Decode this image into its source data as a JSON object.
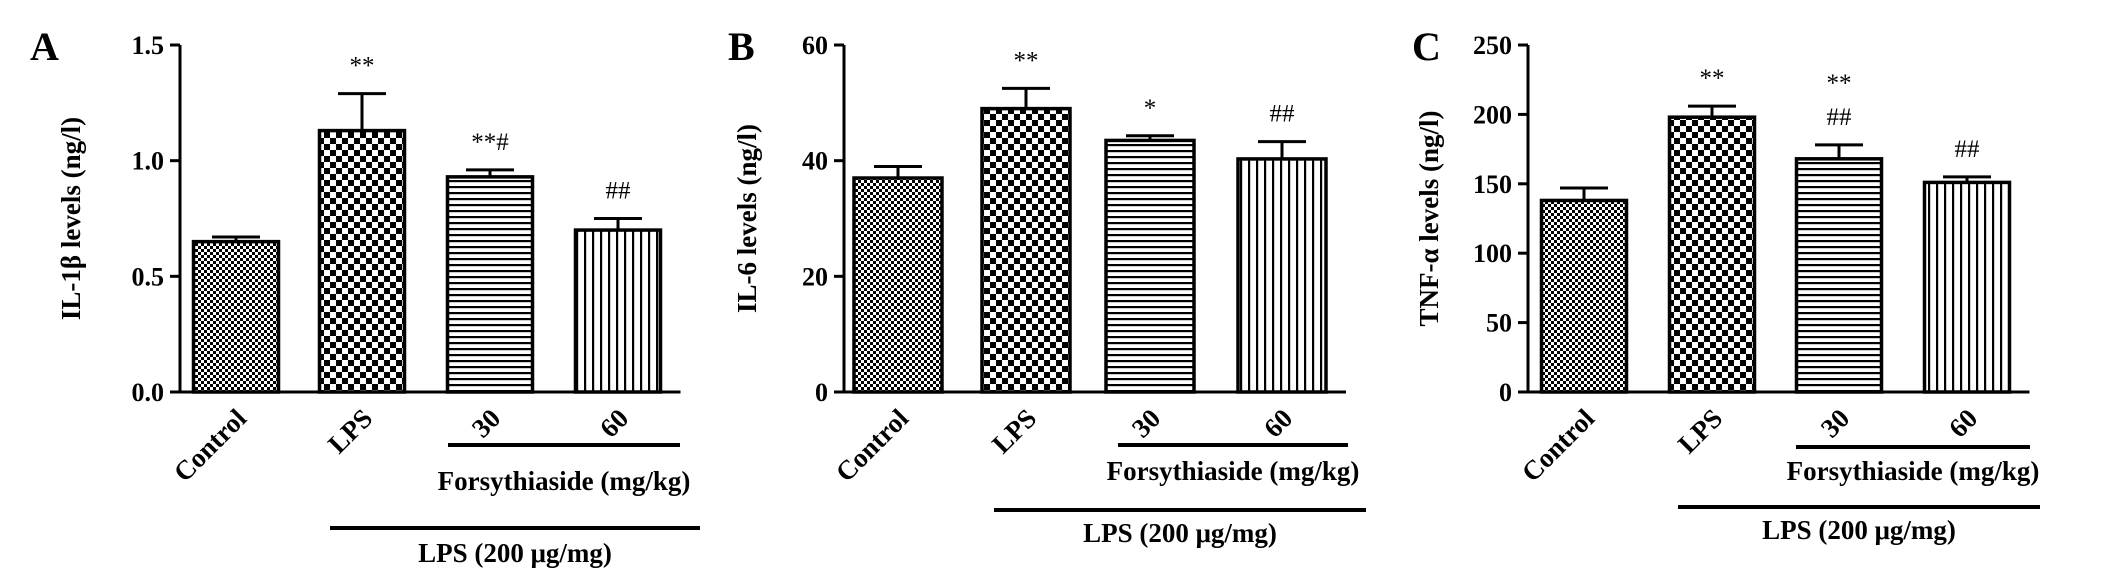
{
  "chart_data": [
    {
      "type": "bar",
      "panel_label": "A",
      "ylabel": "IL-1β levels (ng/l)",
      "ylim": [
        0,
        1.5
      ],
      "yticks": [
        "0.0",
        "0.5",
        "1.0",
        "1.5"
      ],
      "categories": [
        "Control",
        "LPS",
        "30",
        "60"
      ],
      "values": [
        0.65,
        1.13,
        0.93,
        0.7
      ],
      "errors": [
        0.02,
        0.16,
        0.03,
        0.05
      ],
      "annotations": [
        "",
        "**",
        "**#",
        "##"
      ],
      "brackets": [
        "Forsythiaside (mg/kg)",
        "LPS (200 μg/mg)"
      ]
    },
    {
      "type": "bar",
      "panel_label": "B",
      "ylabel": "IL-6 levels (ng/l)",
      "ylim": [
        0,
        60
      ],
      "yticks": [
        "0",
        "20",
        "40",
        "60"
      ],
      "categories": [
        "Control",
        "LPS",
        "30",
        "60"
      ],
      "values": [
        37,
        49,
        43.5,
        40.3
      ],
      "errors": [
        2,
        3.5,
        0.8,
        3.0
      ],
      "annotations": [
        "",
        "**",
        "*",
        "##"
      ],
      "brackets": [
        "Forsythiaside (mg/kg)",
        "LPS (200 μg/mg)"
      ]
    },
    {
      "type": "bar",
      "panel_label": "C",
      "ylabel": "TNF-α levels (ng/l)",
      "ylim": [
        0,
        250
      ],
      "yticks": [
        "0",
        "50",
        "100",
        "150",
        "200",
        "250"
      ],
      "categories": [
        "Control",
        "LPS",
        "30",
        "60"
      ],
      "values": [
        138,
        198,
        168,
        151
      ],
      "errors": [
        9,
        8,
        10,
        4
      ],
      "annotations": [
        "",
        "**",
        "**\n##",
        "##"
      ],
      "brackets": [
        "Forsythiaside (mg/kg)",
        "LPS (200 μg/mg)"
      ]
    }
  ]
}
